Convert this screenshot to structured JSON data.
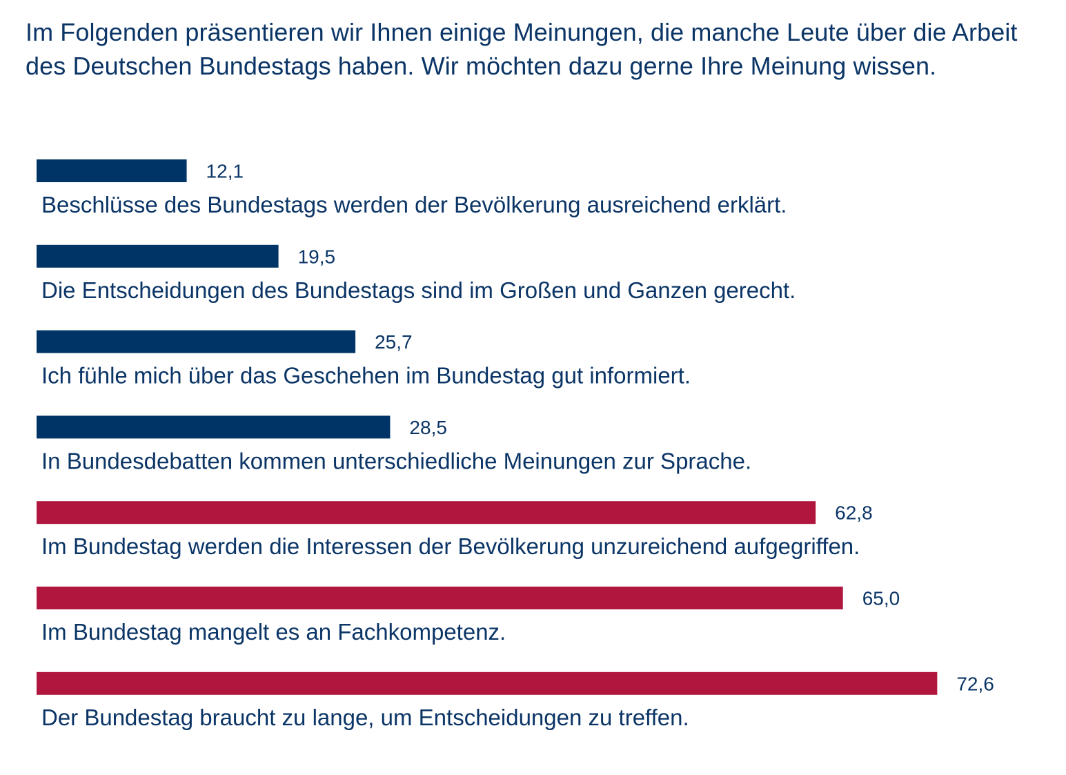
{
  "question": "Im Folgenden präsentieren wir Ihnen einige Meinungen, die manche Leute über die Arbeit des Deutschen Bundestags haben. Wir möchten dazu gerne Ihre Meinung wissen.",
  "colors": {
    "positive": "#003366",
    "negative": "#b0163e",
    "text": "#0b3566"
  },
  "chart_data": {
    "type": "bar",
    "orientation": "horizontal",
    "title": "Im Folgenden präsentieren wir Ihnen einige Meinungen, die manche Leute über die Arbeit des Deutschen Bundestags haben. Wir möchten dazu gerne Ihre Meinung wissen.",
    "xlim": [
      0,
      75
    ],
    "grid": false,
    "categories": [
      "Beschlüsse des Bundestags werden der Bevölkerung ausreichend erklärt.",
      "Die Entscheidungen des Bundestags sind im Großen und Ganzen gerecht.",
      "Ich fühle mich über das Geschehen im Bundestag gut informiert.",
      "In Bundesdebatten kommen unterschiedliche Meinungen zur Sprache.",
      "Im Bundestag werden die Interessen der Bevölkerung unzureichend aufgegriffen.",
      "Im Bundestag mangelt es an Fachkompetenz.",
      "Der Bundestag braucht zu lange, um Entscheidungen zu treffen."
    ],
    "values": [
      12.1,
      19.5,
      25.7,
      28.5,
      62.8,
      65.0,
      72.6
    ],
    "value_labels": [
      "12,1",
      "19,5",
      "25,7",
      "28,5",
      "62,8",
      "65,0",
      "72,6"
    ],
    "tone": [
      "positive",
      "positive",
      "positive",
      "positive",
      "negative",
      "negative",
      "negative"
    ]
  }
}
